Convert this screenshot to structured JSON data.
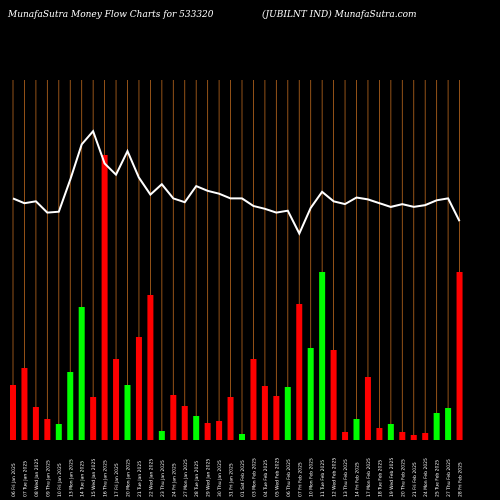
{
  "header": {
    "site_title": "MunafaSutra  Money Flow  Charts for 533320",
    "symbol": "(JUBILNT IND) MunafaSutra.com"
  },
  "colors": {
    "background": "#000000",
    "gridline": "#b5651d",
    "up_bar": "#00ff00",
    "down_bar": "#ff0000",
    "price_line": "#ffffff",
    "label_text": "#ffffff"
  },
  "chart_data": {
    "type": "bar",
    "title": "MunafaSutra  Money Flow  Charts for 533320",
    "subtitle": "(JUBILNT IND) MunafaSutra.com",
    "categories": [
      "06 Fri Jan 2025",
      "07 Tue Jan 2025",
      "08 Wed Jan 2025",
      "09 Thu Jan 2025",
      "10 Fri Jan 2025",
      "13 Mon Jan 2025",
      "14 Tue Jan 2025",
      "15 Wed Jan 2025",
      "16 Thu Jan 2025",
      "17 Fri Jan 2025",
      "20 Mon Jan 2025",
      "21 Tue Jan 2025",
      "22 Wed Jan 2025",
      "23 Thu Jan 2025",
      "24 Fri Jan 2025",
      "27 Mon Jan 2025",
      "28 Tue Jan 2025",
      "29 Wed Jan 2025",
      "30 Thu Jan 2025",
      "31 Fri Jan 2025",
      "01 Sat Feb 2025",
      "03 Mon Feb 2025",
      "04 Tue Feb 2025",
      "05 Wed Feb 2025",
      "06 Thu Feb 2025",
      "07 Fri Feb 2025",
      "10 Mon Feb 2025",
      "11 Tue Feb 2025",
      "12 Wed Feb 2025",
      "13 Thu Feb 2025",
      "14 Fri Feb 2025",
      "17 Mon Feb 2025",
      "18 Tue Feb 2025",
      "19 Wed Feb 2025",
      "20 Thu Feb 2025",
      "21 Fri Feb 2025",
      "24 Mon Feb 2025",
      "25 Tue Feb 2025",
      "27 Thu Feb 2025",
      "28 Fri Feb 2025"
    ],
    "series": [
      {
        "name": "Money Flow",
        "values": [
          55,
          72,
          33,
          21,
          16,
          68,
          133,
          43,
          285,
          81,
          55,
          103,
          145,
          9,
          45,
          34,
          24,
          17,
          19,
          43,
          6,
          81,
          54,
          44,
          53,
          136,
          92,
          168,
          90,
          8,
          21,
          63,
          12,
          16,
          8,
          5,
          7,
          27,
          32,
          168
        ],
        "direction": [
          "down",
          "down",
          "down",
          "down",
          "up",
          "up",
          "up",
          "down",
          "down",
          "down",
          "up",
          "down",
          "down",
          "up",
          "down",
          "down",
          "up",
          "down",
          "down",
          "down",
          "up",
          "down",
          "down",
          "down",
          "up",
          "down",
          "up",
          "up",
          "down",
          "down",
          "up",
          "down",
          "down",
          "up",
          "down",
          "down",
          "down",
          "up",
          "up",
          "down"
        ]
      },
      {
        "name": "Price",
        "values": [
          1155,
          1150,
          1152,
          1140,
          1141,
          1175,
          1212,
          1226,
          1192,
          1180,
          1205,
          1177,
          1159,
          1170,
          1155,
          1151,
          1168,
          1163,
          1160,
          1155,
          1155,
          1147,
          1144,
          1140,
          1142,
          1118,
          1145,
          1162,
          1152,
          1149,
          1156,
          1154,
          1150,
          1146,
          1149,
          1146,
          1148,
          1153,
          1155,
          1131
        ]
      }
    ],
    "ylim": [
      0,
      360
    ],
    "price_range": [
      900,
      1280
    ],
    "grid": true
  }
}
